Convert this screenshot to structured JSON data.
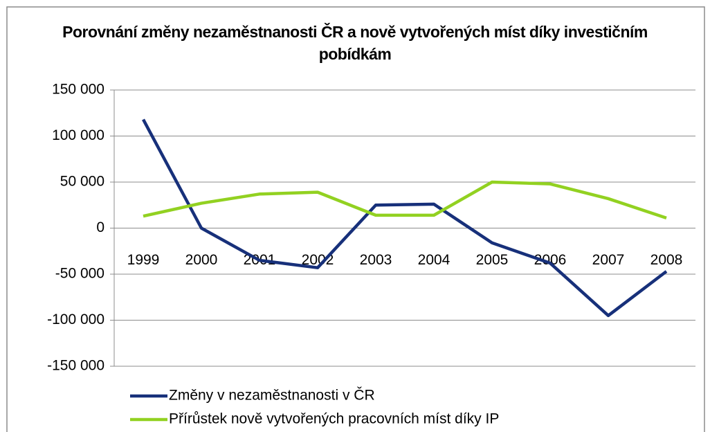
{
  "chart_data": {
    "type": "line",
    "title": "Porovnání změny nezaměstnanosti ČR a nově vytvořených míst díky investičním pobídkám",
    "categories": [
      "1999",
      "2000",
      "2001",
      "2002",
      "2003",
      "2004",
      "2005",
      "2006",
      "2007",
      "2008"
    ],
    "series": [
      {
        "name": "Změny v nezaměstnanosti v ČR",
        "color": "#17307a",
        "values": [
          118000,
          0,
          -35000,
          -43000,
          25000,
          26000,
          -16000,
          -38000,
          -95000,
          -47000
        ]
      },
      {
        "name": "Přírůstek nově vytvořených pracovních míst díky IP",
        "color": "#92d121",
        "values": [
          13000,
          27000,
          37000,
          39000,
          14000,
          14000,
          50000,
          48000,
          32000,
          11000
        ]
      }
    ],
    "ylim": [
      -150000,
      150000
    ],
    "yticks": [
      {
        "value": -150000,
        "label": "-150 000"
      },
      {
        "value": -100000,
        "label": "-100 000"
      },
      {
        "value": -50000,
        "label": "-50 000"
      },
      0,
      {
        "value": 50000,
        "label": "50 000"
      },
      {
        "value": 100000,
        "label": "100 000"
      },
      {
        "value": 150000,
        "label": "150 000"
      }
    ],
    "grid": true,
    "legend": "bottom"
  }
}
